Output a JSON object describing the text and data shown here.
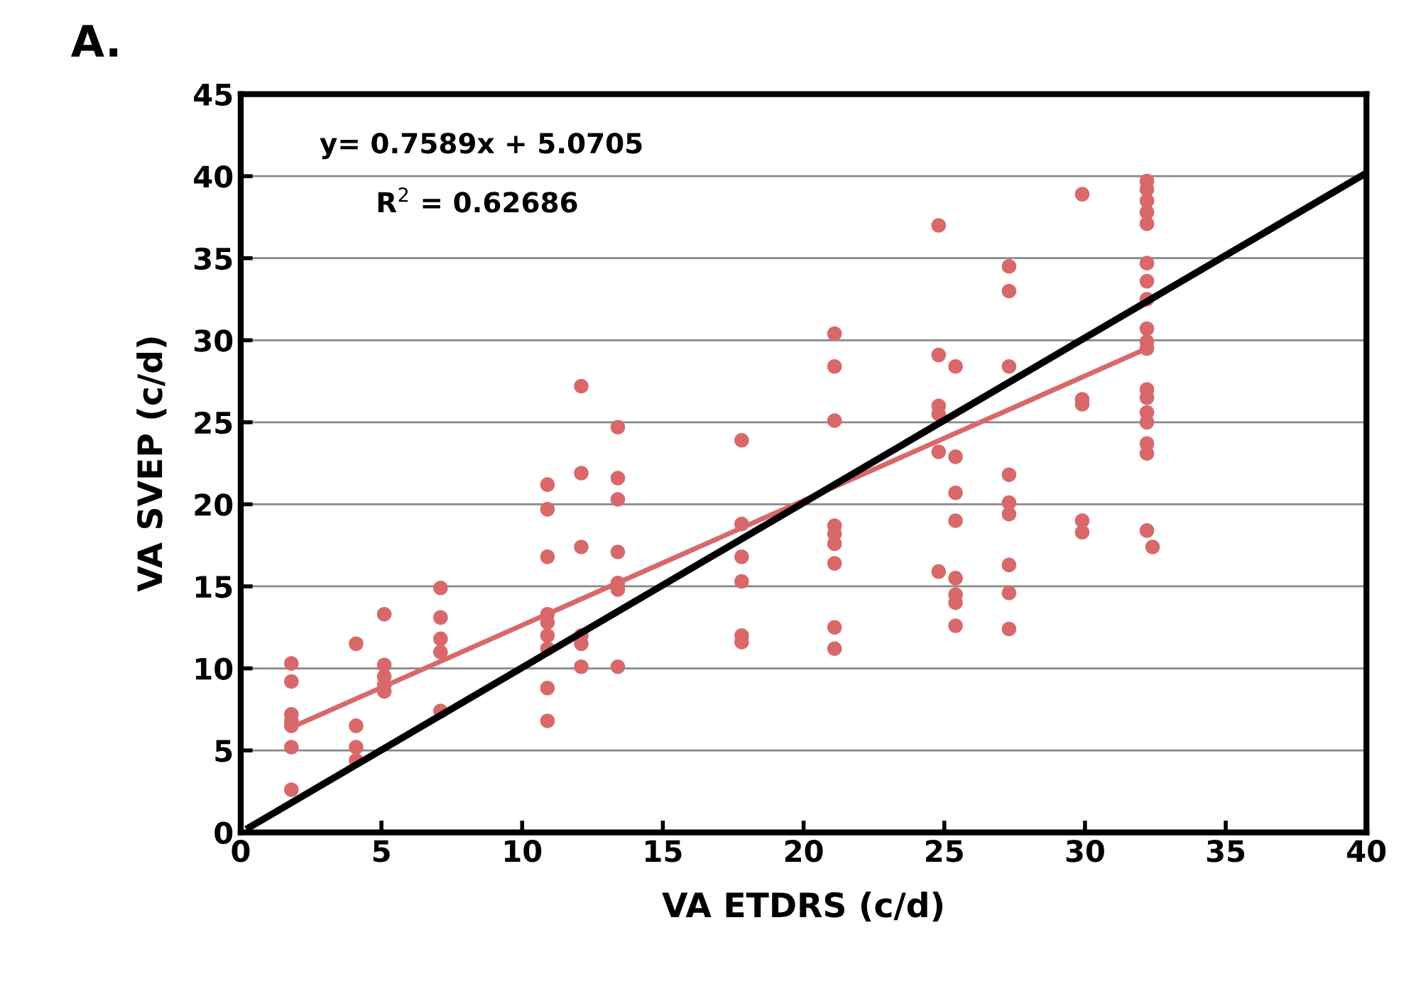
{
  "chart_data": {
    "type": "scatter",
    "title": "A.",
    "xlabel": "VA ETDRS (c/d)",
    "ylabel": "VA SVEP (c/d)",
    "xlim": [
      0,
      40
    ],
    "ylim": [
      0,
      45
    ],
    "xticks": [
      0,
      5,
      10,
      15,
      20,
      25,
      30,
      35,
      40
    ],
    "yticks": [
      0,
      5,
      10,
      15,
      20,
      25,
      30,
      35,
      40,
      45
    ],
    "grid": "y",
    "legend": false,
    "marker": "circle",
    "annotations": [
      "y= 0.7589x + 5.0705",
      "R$^{2}$ = 0.62686"
    ],
    "series": [
      {
        "color": "#d9686a",
        "x": [
          1.8,
          1.8,
          1.8,
          1.8,
          1.8,
          1.8,
          1.8,
          4.1,
          4.1,
          4.1,
          4.1,
          5.1,
          5.1,
          5.1,
          5.1,
          5.1,
          7.1,
          7.1,
          7.1,
          7.1,
          7.1,
          10.9,
          10.9,
          10.9,
          10.9,
          10.9,
          10.9,
          10.9,
          10.9,
          10.9,
          12.1,
          12.1,
          12.1,
          12.1,
          12.1,
          12.1,
          13.4,
          13.4,
          13.4,
          13.4,
          13.4,
          13.4,
          13.4,
          17.8,
          17.8,
          17.8,
          17.8,
          17.8,
          17.8,
          21.1,
          21.1,
          21.1,
          21.1,
          21.1,
          21.1,
          21.1,
          21.1,
          21.1,
          24.8,
          24.8,
          24.8,
          24.8,
          24.8,
          24.8,
          25.4,
          25.4,
          25.4,
          25.4,
          25.4,
          25.4,
          25.4,
          25.4,
          27.3,
          27.3,
          27.3,
          27.3,
          27.3,
          27.3,
          27.3,
          27.3,
          27.3,
          29.9,
          29.9,
          29.9,
          29.9,
          29.9,
          32.2,
          32.2,
          32.2,
          32.2,
          32.2,
          32.2,
          32.2,
          32.2,
          32.2,
          32.2,
          32.2,
          32.2,
          32.2,
          32.2,
          32.2,
          32.2,
          32.2,
          32.2,
          32.4
        ],
        "values": [
          10.3,
          9.2,
          7.2,
          6.8,
          6.5,
          5.2,
          2.6,
          11.5,
          6.5,
          5.2,
          4.4,
          13.3,
          10.2,
          9.5,
          9.0,
          8.6,
          14.9,
          13.1,
          11.8,
          11.0,
          7.4,
          21.2,
          19.7,
          16.8,
          13.3,
          12.8,
          12.0,
          11.2,
          8.8,
          6.8,
          27.2,
          21.9,
          17.4,
          12.0,
          11.5,
          10.1,
          24.7,
          21.6,
          20.3,
          17.1,
          15.2,
          14.8,
          10.1,
          23.9,
          18.8,
          16.8,
          15.3,
          12.0,
          11.6,
          30.4,
          28.4,
          25.1,
          18.7,
          18.2,
          17.6,
          16.4,
          12.5,
          11.2,
          37.0,
          29.1,
          26.0,
          25.5,
          23.2,
          15.9,
          28.4,
          22.9,
          20.7,
          19.0,
          15.5,
          14.5,
          14.0,
          12.6,
          34.5,
          33.0,
          28.4,
          21.8,
          20.1,
          19.4,
          16.3,
          14.6,
          12.4,
          38.9,
          26.4,
          26.1,
          19.0,
          18.3,
          39.7,
          39.2,
          38.5,
          37.8,
          37.1,
          34.7,
          33.6,
          32.5,
          30.7,
          29.9,
          29.5,
          27.0,
          26.5,
          25.6,
          25.0,
          23.7,
          23.1,
          18.4,
          17.4
        ]
      },
      {
        "type": "line",
        "color": "#d9686a",
        "x": [
          1.8,
          32.2
        ],
        "values": [
          6.4,
          29.5
        ],
        "marker": "none"
      },
      {
        "type": "line",
        "color": "#000000",
        "x": [
          0.3,
          40
        ],
        "values": [
          0.3,
          40.2
        ],
        "marker": "none"
      }
    ]
  }
}
